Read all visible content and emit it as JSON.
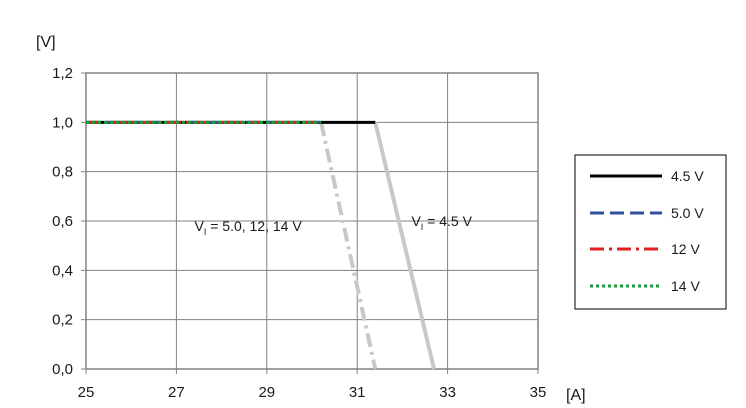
{
  "chart_data": {
    "type": "line",
    "xlabel": "[A]",
    "ylabel": "[V]",
    "xlim": [
      25,
      35
    ],
    "ylim": [
      0.0,
      1.2
    ],
    "xticks": [
      25,
      27,
      29,
      31,
      33,
      35
    ],
    "xtick_labels": [
      "25",
      "27",
      "29",
      "31",
      "33",
      "35"
    ],
    "yticks": [
      0.0,
      0.2,
      0.4,
      0.6,
      0.8,
      1.0,
      1.2
    ],
    "ytick_labels": [
      "0,0",
      "0,2",
      "0,4",
      "0,6",
      "0,8",
      "1,0",
      "1,2"
    ],
    "grid": true,
    "legend_position": "right",
    "series": [
      {
        "name": "4.5 V",
        "color": "#000000",
        "style": "solid",
        "x": [
          25,
          31.4
        ],
        "y": [
          1.0,
          1.0
        ]
      },
      {
        "name": "5.0 V",
        "color": "#2e4f9e",
        "style": "dashed",
        "x": [
          25,
          30.2
        ],
        "y": [
          1.0,
          1.0
        ]
      },
      {
        "name": "12 V",
        "color": "#e02020",
        "style": "dashdot",
        "x": [
          25,
          30.2
        ],
        "y": [
          1.0,
          1.0
        ]
      },
      {
        "name": "14 V",
        "color": "#1a9a3a",
        "style": "dotted",
        "x": [
          25,
          30.2
        ],
        "y": [
          1.0,
          1.0
        ]
      }
    ],
    "foldback_lines": [
      {
        "color": "#c8c8c8",
        "style": "dashdot",
        "x": [
          30.2,
          31.4
        ],
        "y": [
          1.0,
          0.0
        ]
      },
      {
        "color": "#c8c8c8",
        "style": "solid",
        "x": [
          31.4,
          32.7
        ],
        "y": [
          1.0,
          0.0
        ]
      }
    ],
    "annotations": [
      {
        "main": "V",
        "sub": "I",
        "rest": " = 5.0, 12, 14 V",
        "x": 27.4,
        "y": 0.56
      },
      {
        "main": "V",
        "sub": "I",
        "rest": " = 4.5 V",
        "x": 32.2,
        "y": 0.58
      }
    ]
  }
}
